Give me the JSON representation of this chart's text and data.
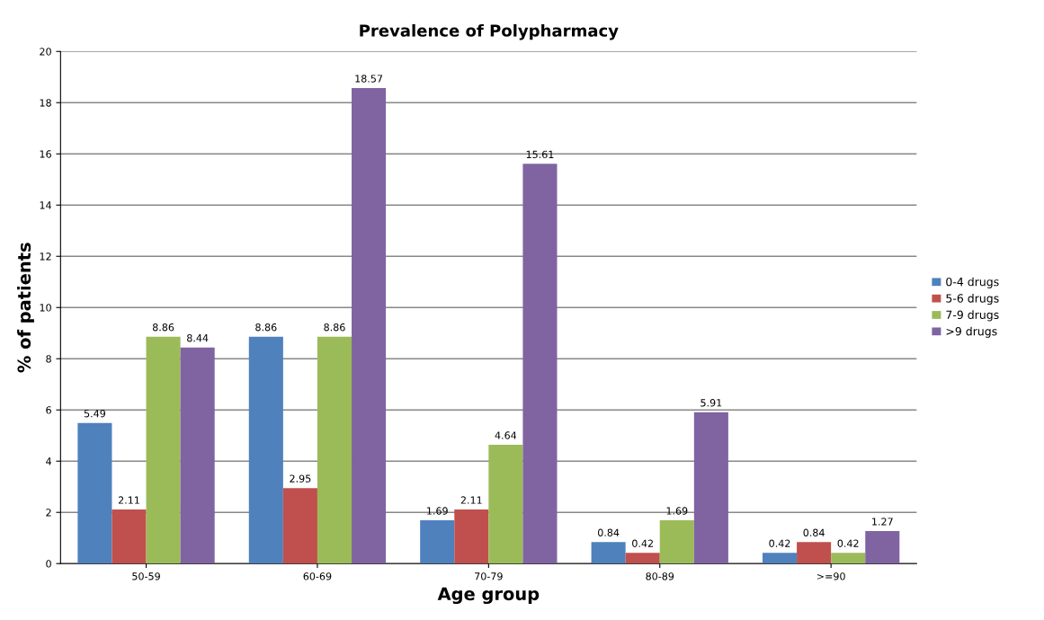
{
  "chart_data": {
    "type": "bar",
    "title": "Prevalence of Polypharmacy",
    "xlabel": "Age group",
    "ylabel": "% of patients",
    "categories": [
      "50-59",
      "60-69",
      "70-79",
      "80-89",
      ">=90"
    ],
    "series": [
      {
        "name": "0-4 drugs",
        "color": "#4f81bd",
        "values": [
          5.49,
          8.86,
          1.69,
          0.84,
          0.42
        ]
      },
      {
        "name": "5-6 drugs",
        "color": "#c0504d",
        "values": [
          2.11,
          2.95,
          2.11,
          0.42,
          0.84
        ]
      },
      {
        "name": "7-9 drugs",
        "color": "#9bbb59",
        "values": [
          8.86,
          8.86,
          4.64,
          1.69,
          0.42
        ]
      },
      {
        "name": ">9 drugs",
        "color": "#8064a2",
        "values": [
          8.44,
          18.57,
          15.61,
          5.91,
          1.27
        ]
      }
    ],
    "ylim": [
      0,
      20
    ],
    "yticks": [
      0,
      2,
      4,
      6,
      8,
      10,
      12,
      14,
      16,
      18,
      20
    ],
    "grid": "y",
    "legend": "right",
    "data_labels": true
  }
}
